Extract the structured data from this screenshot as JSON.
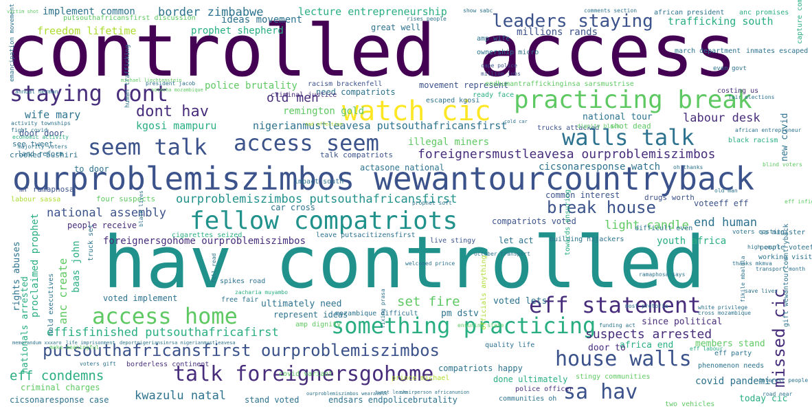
{
  "palette": {
    "dark_purple": "#440154",
    "indigo": "#472d7b",
    "blue": "#3b528b",
    "slate": "#2c728e",
    "teal": "#21918c",
    "green_teal": "#28ae80",
    "green": "#5ec962",
    "lime": "#addc30",
    "yellow": "#fde725"
  },
  "words": [
    "controlled access",
    "hav controlled",
    "ourproblemiszimbos wewantourcountryback",
    "watch cic",
    "practicing break",
    "fellow compatriots",
    "staying dont",
    "seem talk",
    "access seem",
    "walls talk",
    "something practicing",
    "access home",
    "eff statement",
    "talk foreignersgohome",
    "house walls",
    "sa hav",
    "putsouthafricansfirst ourproblemiszimbos",
    "leaders staying",
    "break house",
    "missed cic",
    "dont hav",
    "foreignersmustleavesa ourproblemiszimbos",
    "ourproblemiszimbos putsouthafricansfirst",
    "effisfinished putsouthafricafirst",
    "eff condemns",
    "kwazulu natal",
    "set fire",
    "suspects arrested",
    "national assembly",
    "foreignersgohome ourproblemiszimbos",
    "old men",
    "kgosi mampuru",
    "nigerianmustleavesa putsouthafricansfirst",
    "labour desk",
    "end human",
    "light candle",
    "freedom lifetime",
    "border zimbabwe",
    "implement common",
    "lecture entrepreneurship",
    "ideas movement",
    "prophet shepherd",
    "trafficking south",
    "millions rands",
    "wife mary",
    "police brutality",
    "remington gold",
    "illegal miners",
    "cicsonaresponse watch",
    "covid pandemic",
    "anc create",
    "baas john",
    "proclaimed prophet",
    "rights abuses",
    "nationals arrested",
    "youth africa",
    "compatriots voted",
    "voted implement",
    "ultimately need",
    "represent ideas",
    "pm dstv",
    "voted lets",
    "since political",
    "africa end",
    "members stand",
    "door to",
    "done ultimately",
    "compatriots happy",
    "endsars endpolicebrutality",
    "stand voted",
    "criminal charges",
    "cicsonaresponse case",
    "today cic",
    "common interest",
    "voteeff eff",
    "new covid",
    "national tour",
    "movement represent",
    "great well",
    "need compatriots",
    "door door",
    "see tweet",
    "crooked bushiri",
    "mr ramaphosa",
    "to door",
    "talk compatriots",
    "actasone national",
    "car cross",
    "drugs worth",
    "people receive",
    "let act",
    "four suspects",
    "labour sassa",
    "cigarettes seized",
    "leave putsacitizensfirst",
    "live stingy",
    "building hijackers",
    "difficult even",
    "sa minister",
    "people voteeff",
    "working visit",
    "gift wewantourcountryback",
    "towards ensuring",
    "officials anything",
    "free fair",
    "spikes road",
    "truck set",
    "hold executives",
    "amp dignity",
    "mozambique difficult",
    "quality life",
    "borderless continent",
    "covid variant",
    "prince michael",
    "stingy communities",
    "phenomenon needs",
    "two vehicles",
    "communities oh",
    "police officer",
    "eff party",
    "african president",
    "anc promises",
    "march department",
    "inmates escaped",
    "capture commission",
    "costing us",
    "endhumantraffickinginsa sarsmustrise",
    "ready face",
    "criminal justice",
    "escaped kgosi",
    "racism brackenfell",
    "ownership micro",
    "amp wife",
    "putsouthafricansfirst discussion",
    "shot dead",
    "black racism",
    "trucks attacked",
    "impact south",
    "land reform",
    "emancipation movement",
    "human trafficking",
    "even govt",
    "cape police",
    "million jobs",
    "voters costing",
    "comments section",
    "show sabc",
    "rises people",
    "african entrepreneur",
    "dignity black",
    "oh thanks",
    "blind voters",
    "fight covid",
    "activity townships",
    "economic activity",
    "majority voters",
    "president jacob",
    "annual herman",
    "memorandum xxxaro",
    "life imprisonment",
    "deportnigeriansinrsa nigerianmustleavesa",
    "ourproblemiszimbos wearamask",
    "tweet leave",
    "chairperson africanunion",
    "make meaningful",
    "voters gift",
    "thanks mkmva",
    "transport month",
    "save lives",
    "interest people",
    "road near",
    "fikile mbalula",
    "high court",
    "funding act",
    "ramaphosa says",
    "zacharia muyambo",
    "ensuring state",
    "fixing prasa",
    "full read",
    "black lives",
    "october transport",
    "welcomed prince",
    "eff labour",
    "white privilege",
    "most pretoria",
    "cross mozambique",
    "victim shot",
    "michael liechtenstein",
    "notasha mozambique",
    "cold car",
    "sad affection",
    "prophet soft",
    "old man",
    "fair elections",
    "eff infights",
    "parts south",
    "nigeria sa",
    "stand covid",
    "cultural rights"
  ]
}
